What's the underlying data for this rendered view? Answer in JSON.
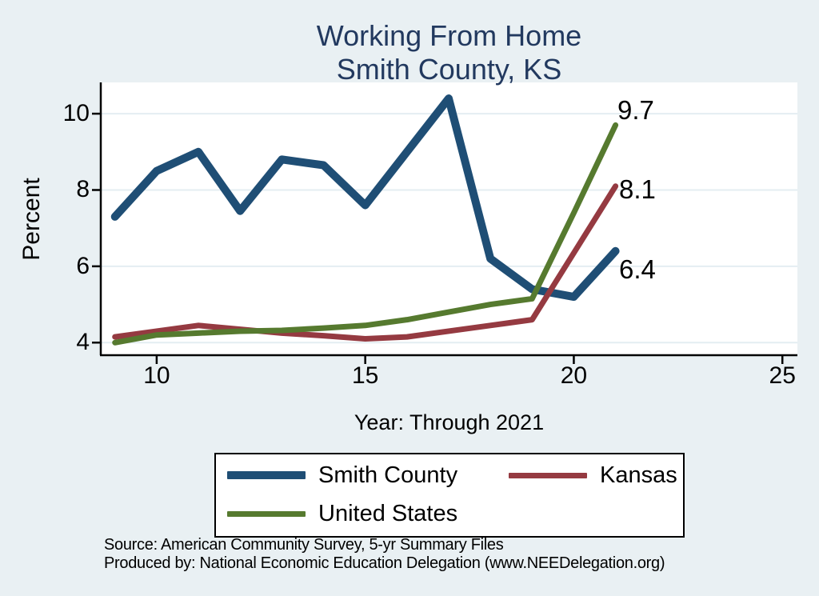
{
  "title": {
    "line1": "Working From Home",
    "line2": "Smith County, KS"
  },
  "colors": {
    "background": "#e9f0f3",
    "plot_bg": "#ffffff",
    "grid": "#e4edf2",
    "axis": "#000000",
    "title_text": "#22395f",
    "smith_county": "#1f4e75",
    "kansas": "#953a41",
    "united_states": "#567a2f"
  },
  "legend": {
    "items": [
      {
        "label": "Smith County",
        "color": "#1f4e75",
        "swatch_height": 10
      },
      {
        "label": "Kansas",
        "color": "#953a41",
        "swatch_height": 7
      },
      {
        "label": "United States",
        "color": "#567a2f",
        "swatch_height": 7
      }
    ]
  },
  "notes": [
    "Source: American Community Survey, 5-yr Summary Files",
    "Produced by: National Economic Education Delegation (www.NEEDelegation.org)"
  ],
  "chart_data": {
    "type": "line",
    "title": "Working From Home - Smith County, KS",
    "xlabel": "Year: Through 2021",
    "ylabel": "Percent",
    "x": [
      9,
      10,
      11,
      12,
      13,
      14,
      15,
      16,
      17,
      18,
      19,
      20,
      21
    ],
    "series": [
      {
        "name": "Smith County",
        "color": "#1f4e75",
        "width": 10,
        "values": [
          7.3,
          8.5,
          9.0,
          7.45,
          8.8,
          8.65,
          7.6,
          9.0,
          10.4,
          6.2,
          5.4,
          5.2,
          6.4
        ],
        "end_label": "6.4"
      },
      {
        "name": "Kansas",
        "color": "#953a41",
        "width": 7,
        "values": [
          4.15,
          4.3,
          4.45,
          4.35,
          4.25,
          4.18,
          4.1,
          4.15,
          4.3,
          4.45,
          4.6,
          6.35,
          8.1
        ],
        "end_label": "8.1"
      },
      {
        "name": "United States",
        "color": "#567a2f",
        "width": 7,
        "values": [
          4.0,
          4.2,
          4.25,
          4.3,
          4.32,
          4.38,
          4.45,
          4.6,
          4.8,
          5.0,
          5.15,
          7.4,
          9.7
        ],
        "end_label": "9.7"
      }
    ],
    "xticks": [
      10,
      15,
      20,
      25
    ],
    "yticks": [
      4,
      6,
      8,
      10
    ],
    "xlim": [
      8.66,
      25.36
    ],
    "ylim": [
      3.67,
      10.82
    ],
    "grid": true,
    "legend_position": "bottom"
  }
}
